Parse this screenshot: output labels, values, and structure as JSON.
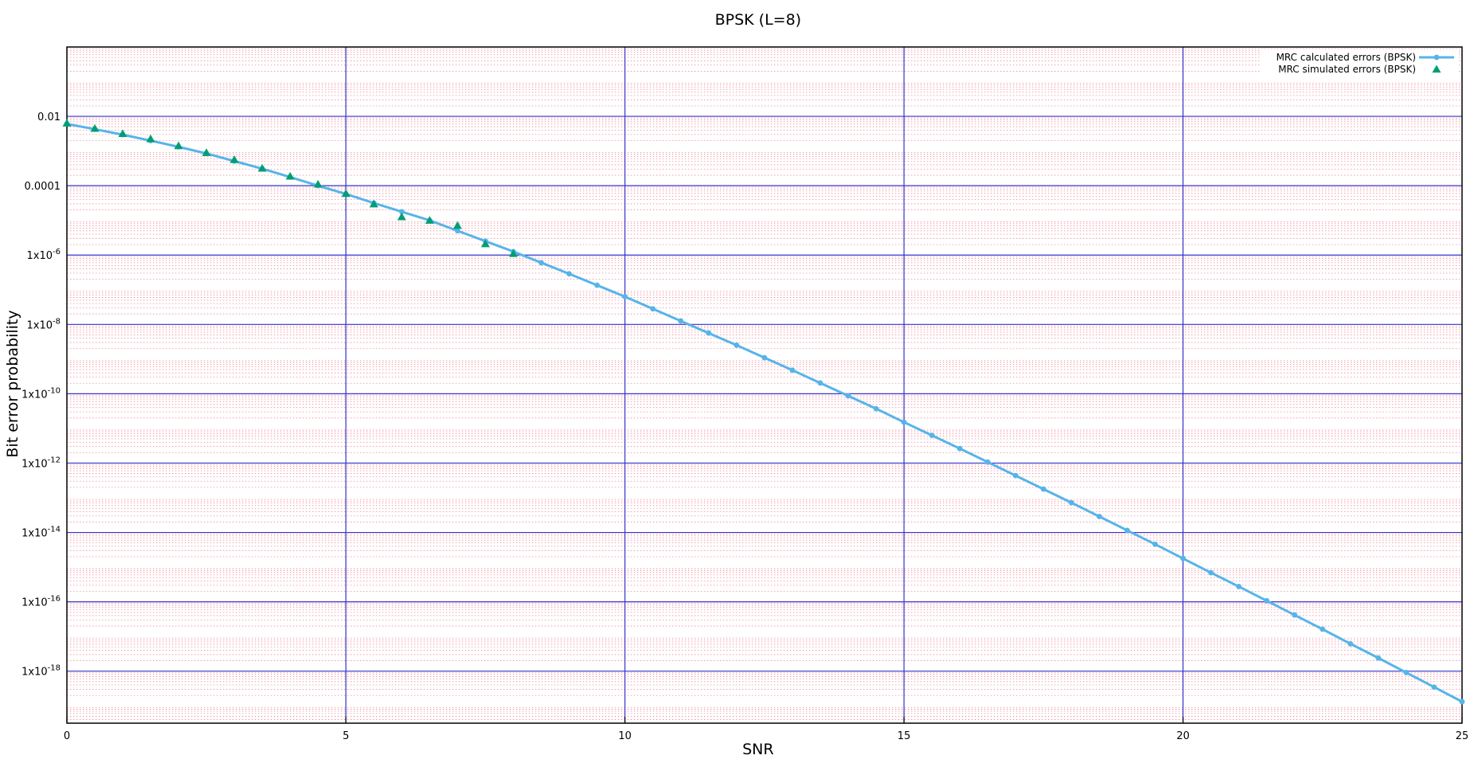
{
  "chart_data": {
    "type": "line",
    "title": "BPSK (L=8)",
    "xlabel": "SNR",
    "ylabel": "Bit error probability",
    "xlim": [
      0,
      25
    ],
    "ylim_log10": [
      -19.5,
      0
    ],
    "yscale": "log",
    "grid": true,
    "legend_position": "top-right",
    "x_ticks": [
      {
        "value": 0,
        "label": "0"
      },
      {
        "value": 5,
        "label": "5"
      },
      {
        "value": 10,
        "label": "10"
      },
      {
        "value": 15,
        "label": "15"
      },
      {
        "value": 20,
        "label": "20"
      },
      {
        "value": 25,
        "label": "25"
      }
    ],
    "y_ticks": [
      {
        "log10": -2,
        "base": "0.01",
        "exp": ""
      },
      {
        "log10": -4,
        "base": "0.0001",
        "exp": ""
      },
      {
        "log10": -6,
        "base": "1x10",
        "exp": "-6"
      },
      {
        "log10": -8,
        "base": "1x10",
        "exp": "-8"
      },
      {
        "log10": -10,
        "base": "1x10",
        "exp": "-10"
      },
      {
        "log10": -12,
        "base": "1x10",
        "exp": "-12"
      },
      {
        "log10": -14,
        "base": "1x10",
        "exp": "-14"
      },
      {
        "log10": -16,
        "base": "1x10",
        "exp": "-16"
      },
      {
        "log10": -18,
        "base": "1x10",
        "exp": "-18"
      }
    ],
    "series": [
      {
        "name": "MRC calculated errors (BPSK)",
        "style": "line-points",
        "color": "#56b4e9",
        "x": [
          0,
          0.5,
          1,
          1.5,
          2,
          2.5,
          3,
          3.5,
          4,
          4.5,
          5,
          5.5,
          6,
          6.5,
          7,
          7.5,
          8,
          8.5,
          9,
          9.5,
          10,
          10.5,
          11,
          11.5,
          12,
          12.5,
          13,
          13.5,
          14,
          14.5,
          15,
          15.5,
          16,
          16.5,
          17,
          17.5,
          18,
          18.5,
          19,
          19.5,
          20,
          20.5,
          21,
          21.5,
          22,
          22.5,
          23,
          23.5,
          24,
          24.5,
          25
        ],
        "log10_y": [
          -2.22,
          -2.37,
          -2.53,
          -2.7,
          -2.88,
          -3.07,
          -3.29,
          -3.51,
          -3.75,
          -4.0,
          -4.24,
          -4.5,
          -4.75,
          -5.0,
          -5.3,
          -5.6,
          -5.9,
          -6.22,
          -6.54,
          -6.87,
          -7.2,
          -7.55,
          -7.9,
          -8.25,
          -8.6,
          -8.96,
          -9.32,
          -9.69,
          -10.06,
          -10.43,
          -10.82,
          -11.2,
          -11.58,
          -11.97,
          -12.36,
          -12.75,
          -13.14,
          -13.54,
          -13.94,
          -14.34,
          -14.75,
          -15.16,
          -15.56,
          -15.97,
          -16.38,
          -16.79,
          -17.21,
          -17.62,
          -18.04,
          -18.46,
          -18.88
        ]
      },
      {
        "name": "MRC simulated errors (BPSK)",
        "style": "points",
        "marker": "triangle",
        "color": "#009e73",
        "x": [
          0,
          0.5,
          1,
          1.5,
          2,
          2.5,
          3,
          3.5,
          4,
          4.5,
          5,
          5.5,
          6,
          6.5,
          7,
          7.5,
          8
        ],
        "log10_y": [
          -2.2,
          -2.35,
          -2.5,
          -2.65,
          -2.85,
          -3.05,
          -3.25,
          -3.5,
          -3.73,
          -3.96,
          -4.23,
          -4.53,
          -4.9,
          -5.0,
          -5.15,
          -5.68,
          -5.96
        ]
      }
    ]
  }
}
